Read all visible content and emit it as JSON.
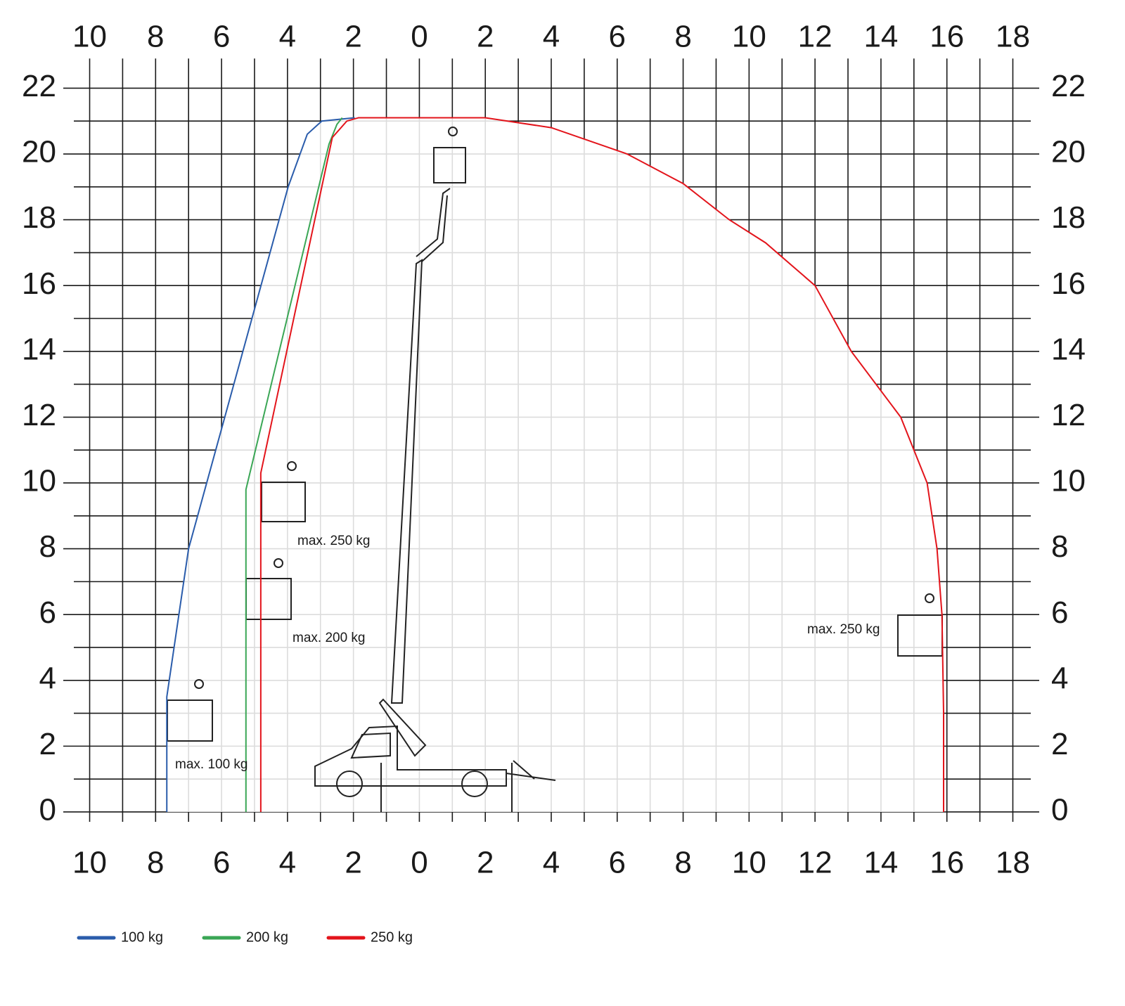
{
  "chart_data": {
    "type": "line",
    "xlim": [
      -10.8,
      18.8
    ],
    "ylim": [
      -0.3,
      22.9
    ],
    "xticks": [
      {
        "value": -10,
        "label": "10"
      },
      {
        "value": -8,
        "label": "8"
      },
      {
        "value": -6,
        "label": "6"
      },
      {
        "value": -4,
        "label": "4"
      },
      {
        "value": -2,
        "label": "2"
      },
      0,
      2,
      4,
      6,
      8,
      10,
      12,
      14,
      16,
      18
    ],
    "yticks": [
      0,
      2,
      4,
      6,
      8,
      10,
      12,
      14,
      16,
      18,
      20,
      22
    ],
    "grid": true,
    "series": [
      {
        "name": "100 kg",
        "color": "#2a5cab",
        "x": [
          -7.66,
          -7.66,
          -7.0,
          -3.98,
          -3.4,
          -2.96,
          -1.96
        ],
        "y": [
          0,
          3.5,
          8,
          19,
          20.6,
          21.0,
          21.1
        ]
      },
      {
        "name": "200 kg",
        "color": "#3aa655",
        "x": [
          -5.26,
          -5.26,
          -2.74,
          -2.5,
          -2.34
        ],
        "y": [
          0,
          9.8,
          20.3,
          20.9,
          21.1
        ]
      },
      {
        "name": "250 kg",
        "color": "#e3141b",
        "x": [
          -4.81,
          -4.81,
          -2.64,
          -2.2,
          -1.85,
          2.0,
          4,
          6.3,
          8,
          9.4,
          10.5,
          12.0,
          13.1,
          14.6,
          15.4,
          15.7,
          15.85,
          15.9,
          15.9
        ],
        "y": [
          0,
          10.3,
          20.5,
          21.0,
          21.1,
          21.1,
          20.8,
          20.0,
          19.1,
          18.0,
          17.3,
          16.0,
          14.0,
          12.0,
          10.0,
          8.0,
          6.0,
          3.0,
          0
        ]
      }
    ],
    "annotations": [
      "max. 250 kg",
      "max. 200 kg",
      "max. 100 kg",
      "max. 250 kg"
    ]
  }
}
